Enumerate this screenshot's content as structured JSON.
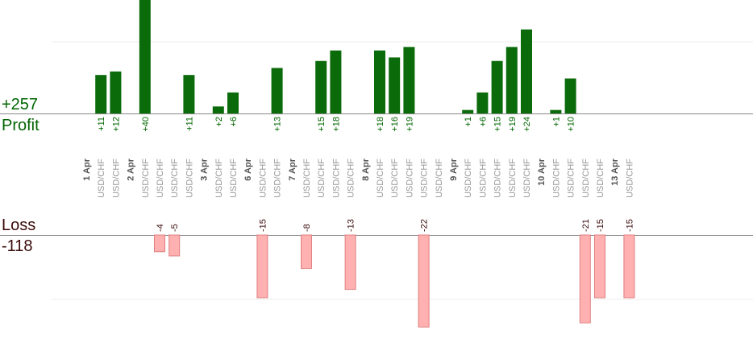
{
  "summary": {
    "profit_total": "+257",
    "profit_label": "Profit",
    "loss_label": "Loss",
    "loss_total": "-118"
  },
  "chart_data": {
    "type": "bar",
    "title": "",
    "xlabel": "",
    "ylabel": "",
    "profit_ylim": [
      0,
      40
    ],
    "loss_ylim": [
      0,
      22
    ],
    "colors": {
      "profit": "#0b6b0b",
      "loss": "#ffb0b0",
      "loss_border": "#e08080",
      "profit_text": "#006400",
      "loss_text": "#3a0a0a",
      "trade_label": "#999999",
      "date_label": "#555555"
    },
    "columns": [
      {
        "date": "1 Apr"
      },
      {
        "label": "USD/CHF",
        "profit": 11
      },
      {
        "label": "USD/CHF",
        "profit": 12
      },
      {
        "date": "2 Apr"
      },
      {
        "label": "USD/CHF",
        "profit": 40
      },
      {
        "label": "USD/CHF",
        "loss": 4
      },
      {
        "label": "USD/CHF",
        "loss": 5
      },
      {
        "label": "USD/CHF",
        "profit": 11
      },
      {
        "date": "3 Apr"
      },
      {
        "label": "USD/CHF",
        "profit": 2
      },
      {
        "label": "USD/CHF",
        "profit": 6
      },
      {
        "date": "6 Apr"
      },
      {
        "label": "USD/CHF",
        "loss": 15
      },
      {
        "label": "USD/CHF",
        "profit": 13
      },
      {
        "date": "7 Apr"
      },
      {
        "label": "USD/CHF",
        "loss": 8
      },
      {
        "label": "USD/CHF",
        "profit": 15
      },
      {
        "label": "USD/CHF",
        "profit": 18
      },
      {
        "label": "USD/CHF",
        "loss": 13
      },
      {
        "date": "8 Apr"
      },
      {
        "label": "USD/CHF",
        "profit": 18
      },
      {
        "label": "USD/CHF",
        "profit": 16
      },
      {
        "label": "USD/CHF",
        "profit": 19
      },
      {
        "label": "USD/CHF",
        "loss": 22
      },
      {
        "label": "USD/CHF"
      },
      {
        "date": "9 Apr"
      },
      {
        "label": "USD/CHF",
        "profit": 1
      },
      {
        "label": "USD/CHF",
        "profit": 6
      },
      {
        "label": "USD/CHF",
        "profit": 15
      },
      {
        "label": "USD/CHF",
        "profit": 19
      },
      {
        "label": "USD/CHF",
        "profit": 24
      },
      {
        "date": "10 Apr"
      },
      {
        "label": "USD/CHF",
        "profit": 1
      },
      {
        "label": "USD/CHF",
        "profit": 10
      },
      {
        "label": "USD/CHF",
        "loss": 21
      },
      {
        "label": "USD/CHF",
        "loss": 15
      },
      {
        "date": "13 Apr"
      },
      {
        "label": "USD/CHF",
        "loss": 15
      }
    ]
  }
}
